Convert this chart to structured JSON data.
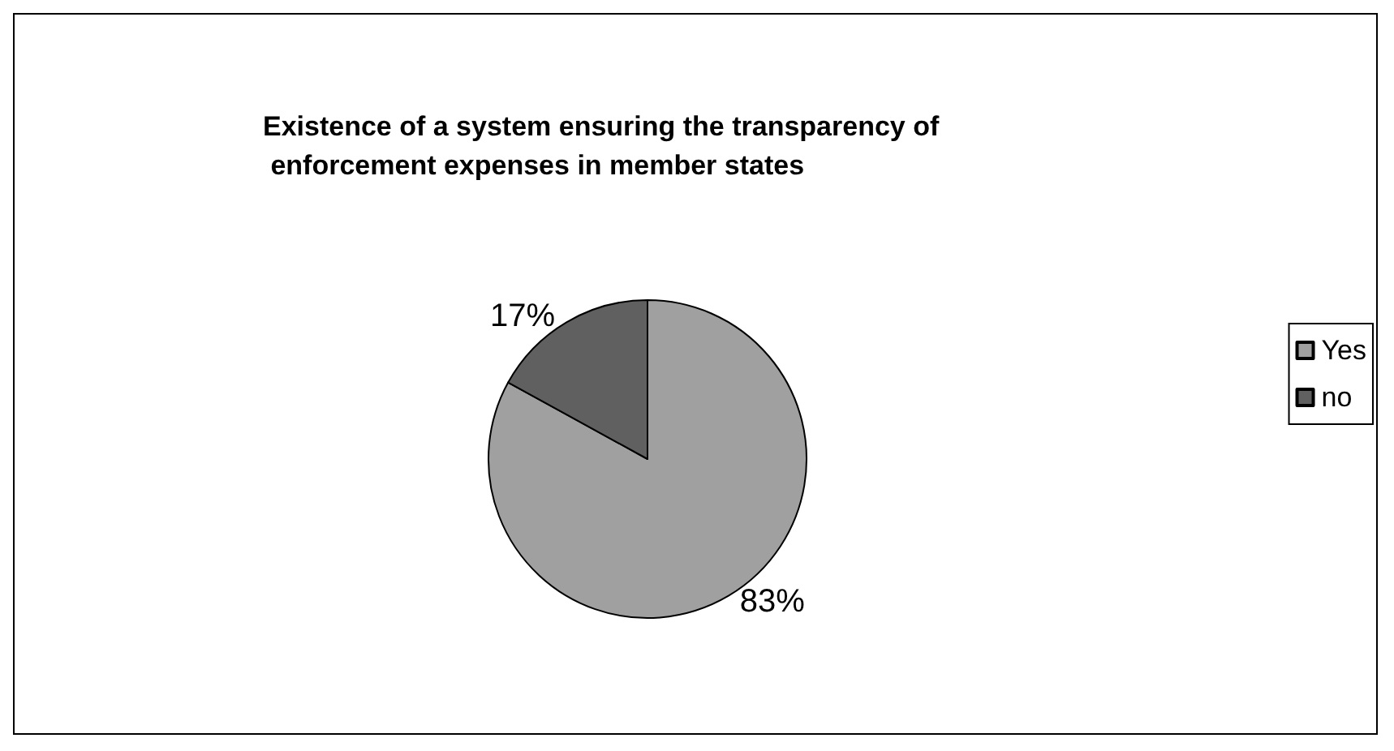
{
  "chart_data": {
    "type": "pie",
    "title": "Existence of a system ensuring the transparency of enforcement expenses in member states",
    "categories": [
      "Yes",
      "no"
    ],
    "values": [
      83,
      17
    ],
    "colors": [
      "#a0a0a0",
      "#606060"
    ],
    "value_labels": [
      "83%",
      "17%"
    ],
    "legend": "right"
  }
}
